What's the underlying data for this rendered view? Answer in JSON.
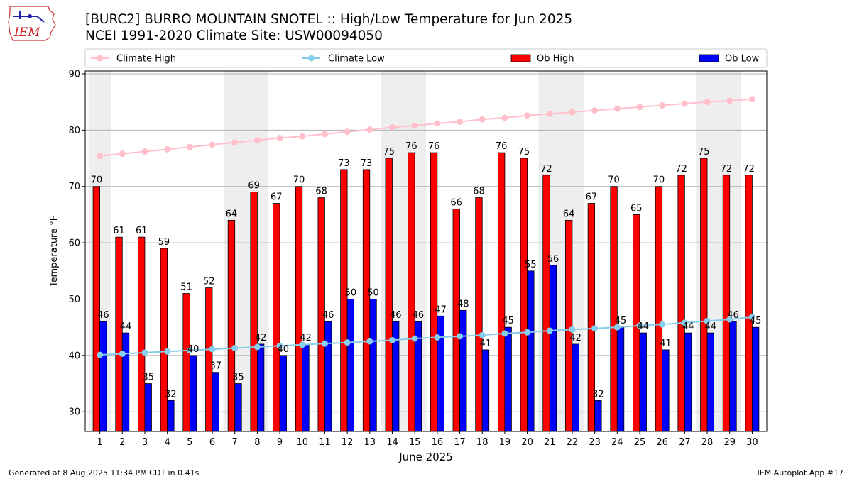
{
  "logo": {
    "text": "IEM"
  },
  "header": {
    "title_line1": "[BURC2] BURRO MOUNTAIN SNOTEL :: High/Low Temperature for Jun 2025",
    "title_line2": "NCEI 1991-2020 Climate Site: USW00094050"
  },
  "footer": {
    "left": "Generated at 8 Aug 2025 11:34 PM CDT in 0.41s",
    "right": "IEM Autoplot App #17"
  },
  "chart_data": {
    "type": "bar",
    "title": "[BURC2] BURRO MOUNTAIN SNOTEL :: High/Low Temperature for Jun 2025",
    "subtitle": "NCEI 1991-2020 Climate Site: USW00094050",
    "xlabel": "June 2025",
    "ylabel": "Temperature °F",
    "ylim": [
      26.5,
      90.5
    ],
    "yticks": [
      30,
      40,
      50,
      60,
      70,
      80,
      90
    ],
    "grid": true,
    "legend_position": "top",
    "categories": [
      "1",
      "2",
      "3",
      "4",
      "5",
      "6",
      "7",
      "8",
      "9",
      "10",
      "11",
      "12",
      "13",
      "14",
      "15",
      "16",
      "17",
      "18",
      "19",
      "20",
      "21",
      "22",
      "23",
      "24",
      "25",
      "26",
      "27",
      "28",
      "29",
      "30"
    ],
    "weekend_shading": [
      [
        1,
        1
      ],
      [
        7,
        8
      ],
      [
        14,
        15
      ],
      [
        21,
        22
      ],
      [
        28,
        29
      ]
    ],
    "series": [
      {
        "name": "Climate High",
        "kind": "line",
        "color": "#ffc0cb",
        "values": [
          75.4,
          75.8,
          76.2,
          76.6,
          77.0,
          77.4,
          77.8,
          78.2,
          78.6,
          78.9,
          79.3,
          79.7,
          80.1,
          80.5,
          80.8,
          81.2,
          81.5,
          81.9,
          82.2,
          82.6,
          82.9,
          83.2,
          83.5,
          83.8,
          84.1,
          84.4,
          84.7,
          85.0,
          85.2,
          85.5
        ]
      },
      {
        "name": "Climate Low",
        "kind": "line",
        "color": "#87ceeb",
        "values": [
          40.1,
          40.3,
          40.5,
          40.7,
          40.9,
          41.1,
          41.3,
          41.5,
          41.7,
          41.9,
          42.1,
          42.3,
          42.5,
          42.7,
          43.0,
          43.2,
          43.4,
          43.6,
          43.9,
          44.1,
          44.4,
          44.6,
          44.8,
          45.0,
          45.3,
          45.5,
          45.8,
          46.1,
          46.4,
          46.8
        ]
      },
      {
        "name": "Ob High",
        "kind": "bar",
        "color": "#ff0000",
        "values": [
          70,
          61,
          61,
          59,
          51,
          52,
          64,
          69,
          67,
          70,
          68,
          73,
          73,
          75,
          76,
          76,
          66,
          68,
          76,
          75,
          72,
          64,
          67,
          70,
          65,
          70,
          72,
          75,
          72,
          72
        ]
      },
      {
        "name": "Ob Low",
        "kind": "bar",
        "color": "#0000ff",
        "values": [
          46,
          44,
          35,
          32,
          40,
          37,
          35,
          42,
          40,
          42,
          46,
          50,
          50,
          46,
          46,
          47,
          48,
          41,
          45,
          55,
          56,
          42,
          32,
          45,
          44,
          41,
          44,
          44,
          46,
          45
        ]
      }
    ]
  }
}
